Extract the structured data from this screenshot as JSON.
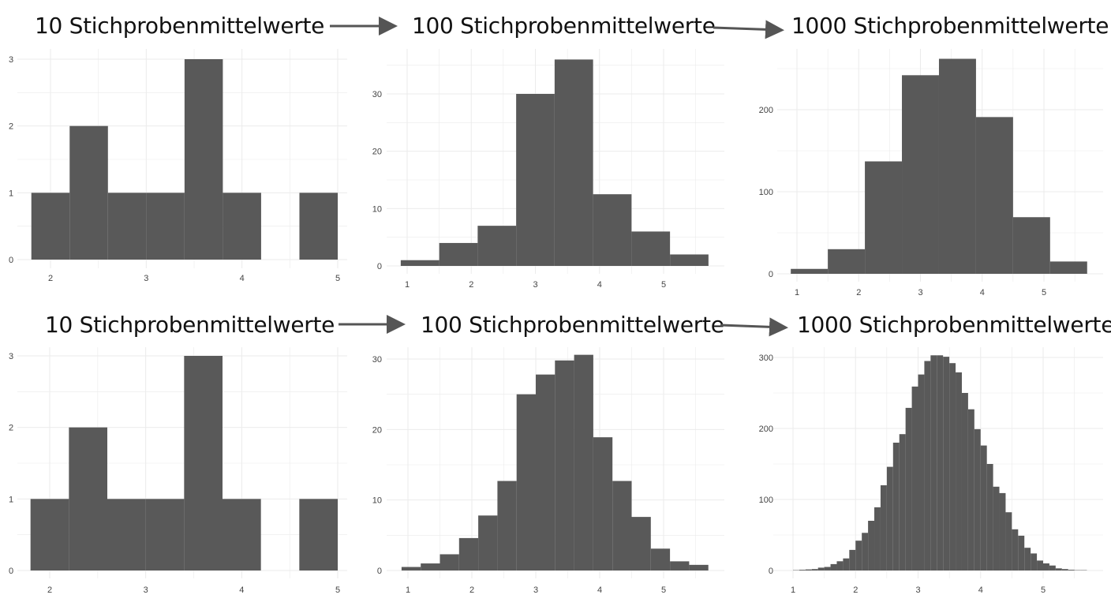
{
  "titles": {
    "top": [
      "10 Stichprobenmittelwerte",
      "100 Stichprobenmittelwerte",
      "1000 Stichprobenmittelwerte"
    ],
    "bottom": [
      "10 Stichprobenmittelwerte",
      "100 Stichprobenmittelwerte",
      "1000 Stichprobenmittelwerte"
    ]
  },
  "colors": {
    "bar": "#595959",
    "grid": "#ebebeb",
    "arrow": "#555555"
  },
  "chart_data": [
    {
      "type": "bar",
      "title": "10 Stichprobenmittelwerte",
      "bin_start": 1.8,
      "bin_width": 0.4,
      "values": [
        1,
        2,
        1,
        1,
        3,
        1,
        0,
        1
      ],
      "xticks": [
        2,
        3,
        4,
        5
      ],
      "yticks": [
        0,
        1,
        2,
        3
      ],
      "grid": true
    },
    {
      "type": "bar",
      "title": "100 Stichprobenmittelwerte",
      "bin_start": 0.9,
      "bin_width": 0.6,
      "values": [
        1,
        4,
        7,
        30,
        36,
        12.5,
        6,
        2
      ],
      "xticks": [
        1,
        2,
        3,
        4,
        5
      ],
      "yticks": [
        0,
        10,
        20,
        30
      ],
      "grid": true
    },
    {
      "type": "bar",
      "title": "1000 Stichprobenmittelwerte",
      "bin_start": 0.9,
      "bin_width": 0.6,
      "values": [
        6,
        30,
        137,
        242,
        262,
        191,
        69,
        15
      ],
      "xticks": [
        1,
        2,
        3,
        4,
        5
      ],
      "yticks": [
        0,
        100,
        200
      ],
      "grid": true
    },
    {
      "type": "bar",
      "title": "10 Stichprobenmittelwerte",
      "bin_start": 1.8,
      "bin_width": 0.4,
      "values": [
        1,
        2,
        1,
        1,
        3,
        1,
        0,
        1
      ],
      "xticks": [
        2,
        3,
        4,
        5
      ],
      "yticks": [
        0,
        1,
        2,
        3
      ],
      "grid": true
    },
    {
      "type": "bar",
      "title": "100 Stichprobenmittelwerte",
      "bin_start": 0.9,
      "bin_width": 0.3,
      "values": [
        0.5,
        1,
        2.3,
        4.6,
        7.8,
        12.7,
        25,
        27.8,
        29.8,
        30.6,
        18.9,
        12.7,
        7.6,
        3.1,
        1.3,
        0.8
      ],
      "xticks": [
        1,
        2,
        3,
        4,
        5
      ],
      "yticks": [
        0,
        10,
        20,
        30
      ],
      "grid": true
    },
    {
      "type": "bar",
      "title": "1000 Stichprobenmittelwerte",
      "bin_start": 1.0,
      "bin_width": 0.1,
      "values": [
        0.5,
        1,
        1.5,
        2,
        4,
        5,
        9,
        13,
        17,
        29,
        42,
        53,
        70,
        89,
        120,
        146,
        180,
        192,
        229,
        259,
        276,
        295,
        303,
        303,
        301,
        292,
        279,
        250,
        227,
        199,
        176,
        150,
        118,
        109,
        82,
        58,
        49,
        32,
        24,
        14,
        10,
        7,
        3,
        2,
        1,
        0.5,
        0.5
      ],
      "xticks": [
        1,
        2,
        3,
        4,
        5
      ],
      "yticks": [
        0,
        100,
        200,
        300
      ],
      "grid": true
    }
  ]
}
